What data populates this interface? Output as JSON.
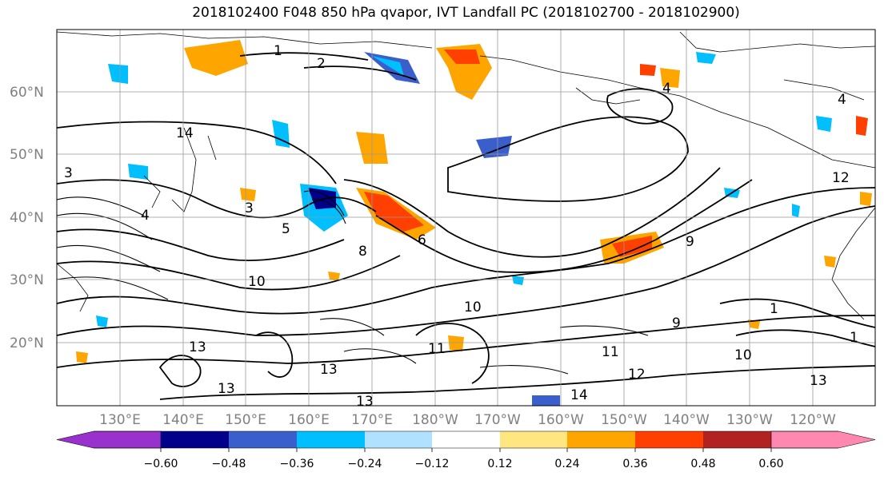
{
  "title": "2018102400 F048 850 hPa qvapor, IVT Landfall PC (2018102700 - 2018102900)",
  "map": {
    "lat_labels": [
      "60°N",
      "50°N",
      "40°N",
      "30°N",
      "20°N"
    ],
    "lon_labels": [
      "130°E",
      "140°E",
      "150°E",
      "160°E",
      "170°E",
      "180°W",
      "170°W",
      "160°W",
      "150°W",
      "140°W",
      "130°W",
      "120°W"
    ],
    "contour_labels": [
      "1",
      "2",
      "4",
      "4",
      "3",
      "14",
      "4",
      "3",
      "5",
      "6",
      "8",
      "9",
      "10",
      "11",
      "12",
      "13",
      "13",
      "13",
      "13",
      "14",
      "1",
      "10",
      "11",
      "12",
      "10",
      "9",
      "1",
      "13"
    ]
  },
  "colorbar": {
    "tick_labels": [
      "−0.60",
      "−0.48",
      "−0.36",
      "−0.24",
      "−0.12",
      "0.12",
      "0.24",
      "0.36",
      "0.48",
      "0.60"
    ],
    "colors": [
      "#9932cc",
      "#00008b",
      "#3a5fcd",
      "#00bfff",
      "#b0e2ff",
      "#ffffff",
      "#ffe680",
      "#ffa500",
      "#ff4000",
      "#b22222",
      "#ff88b0"
    ]
  }
}
